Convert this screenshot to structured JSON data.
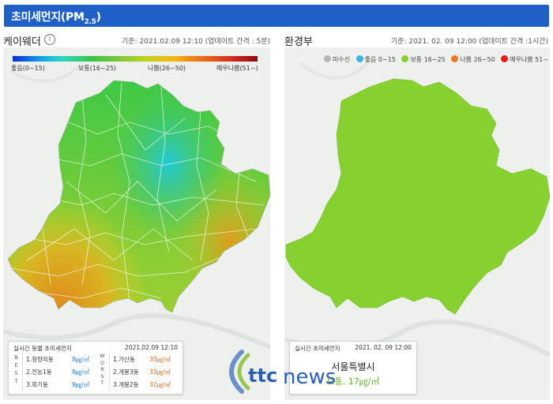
{
  "header": {
    "title_main": "초미세먼지(PM",
    "title_sub": "2.5",
    "title_close": ")"
  },
  "left_panel": {
    "title": "케이웨더",
    "info_icon": "i",
    "time": "기준: 2021.02.09 12:10 (업데이트 간격 : 5분)",
    "legend": [
      "좋음(0~15)",
      "보통(16~25)",
      "나쁨(26~50)",
      "매우나쁨(51~)"
    ],
    "card": {
      "title": "실시간 동별 초미세먼지",
      "time": "2021.02.09 12:10",
      "best_letters": [
        "B",
        "E",
        "S",
        "T"
      ],
      "worst_letters": [
        "W",
        "O",
        "R",
        "S",
        "T"
      ],
      "best": [
        {
          "rank": "1.청량리동",
          "value": "8㎍/㎥"
        },
        {
          "rank": "2.전농1동",
          "value": "8㎍/㎥"
        },
        {
          "rank": "3.회기동",
          "value": "9㎍/㎥"
        }
      ],
      "worst": [
        {
          "rank": "1.가산동",
          "value": "33㎍/㎥"
        },
        {
          "rank": "2.개봉3동",
          "value": "33㎍/㎥"
        },
        {
          "rank": "3.개봉2동",
          "value": "32㎍/㎥"
        }
      ]
    }
  },
  "right_panel": {
    "title": "환경부",
    "time": "기준: 2021. 02. 09 12:00 (업데이트 간격 :1시간)",
    "legend": [
      {
        "label": "미수신",
        "color": "#b5b5b5"
      },
      {
        "label": "좋음 0~15",
        "color": "#35b6e8"
      },
      {
        "label": "보통 16~25",
        "color": "#86d12f"
      },
      {
        "label": "나쁨 26~50",
        "color": "#ee7a1f"
      },
      {
        "label": "매우나쁨 51~",
        "color": "#e51d1d"
      }
    ],
    "card": {
      "title": "실시간 초미세먼지",
      "time": "2021. 02. 09 12:00",
      "city": "서울특별시",
      "value": "보통, 17㎍/㎥"
    }
  },
  "colors": {
    "accent": "#1f5fc8",
    "best_value": "#2b7fd9",
    "worst_value": "#e0661a",
    "moderate": "#86d12f"
  },
  "watermark": {
    "text": "news",
    "logo_text": "ttc"
  }
}
